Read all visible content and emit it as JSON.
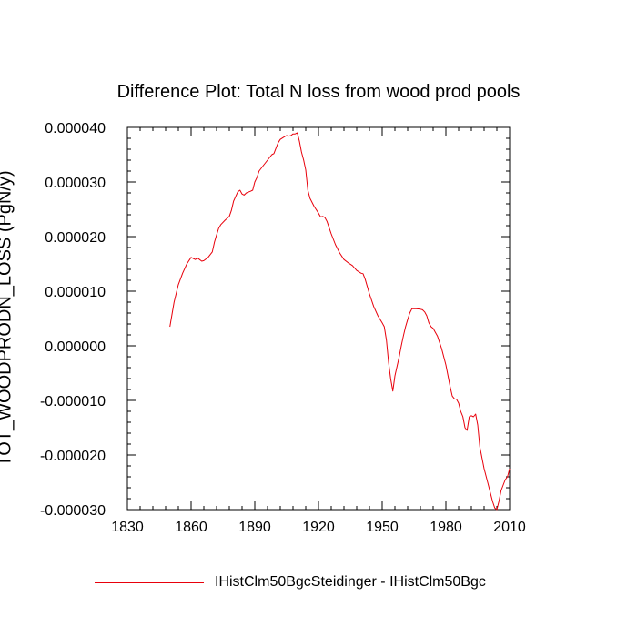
{
  "chart_data": {
    "type": "line",
    "title": "Difference Plot: Total N loss from wood prod pools",
    "xlabel": "",
    "ylabel": "TOT_WOODPRODN_LOSS  (PgN/y)",
    "xlim": [
      1830,
      2010
    ],
    "ylim": [
      -3e-05,
      4e-05
    ],
    "x_ticks": [
      "1830",
      "1860",
      "1890",
      "1920",
      "1950",
      "1980",
      "2010"
    ],
    "y_ticks": [
      "0.000040",
      "0.000030",
      "0.000020",
      "0.000010",
      "0.000000",
      "-0.000010",
      "-0.000020",
      "-0.000030"
    ],
    "grid": false,
    "legend_position": "bottom-left",
    "series_color": "#e8000b",
    "series": [
      {
        "name": "IHistClm50BgcSteidinger - IHistClm50Bgc",
        "x": [
          1850,
          1852,
          1854,
          1856,
          1858,
          1860,
          1861,
          1862,
          1863,
          1864,
          1865,
          1866,
          1868,
          1870,
          1871,
          1872,
          1873,
          1874,
          1876,
          1878,
          1879,
          1880,
          1882,
          1883,
          1884,
          1885,
          1886,
          1888,
          1889,
          1890,
          1891,
          1892,
          1894,
          1896,
          1898,
          1899,
          1900,
          1901,
          1902,
          1904,
          1905,
          1906,
          1907,
          1908,
          1909,
          1910,
          1911,
          1912,
          1913,
          1914,
          1915,
          1916,
          1918,
          1920,
          1921,
          1922,
          1923,
          1924,
          1926,
          1928,
          1930,
          1932,
          1934,
          1936,
          1938,
          1940,
          1941,
          1942,
          1944,
          1946,
          1948,
          1950,
          1951,
          1952,
          1953,
          1954,
          1955,
          1956,
          1958,
          1959,
          1960,
          1961,
          1962,
          1963,
          1964,
          1966,
          1968,
          1969,
          1970,
          1971,
          1972,
          1973,
          1974,
          1975,
          1976,
          1978,
          1980,
          1982,
          1983,
          1984,
          1985,
          1986,
          1987,
          1988,
          1989,
          1990,
          1991,
          1992,
          1993,
          1994,
          1995,
          1996,
          1998,
          2000,
          2001,
          2002,
          2003,
          2004,
          2005,
          2006,
          2007,
          2008,
          2009,
          2010
        ],
        "y": [
          3.5e-06,
          8e-06,
          1.12e-05,
          1.33e-05,
          1.5e-05,
          1.62e-05,
          1.6e-05,
          1.58e-05,
          1.61e-05,
          1.58e-05,
          1.55e-05,
          1.56e-05,
          1.62e-05,
          1.72e-05,
          1.9e-05,
          2.03e-05,
          2.15e-05,
          2.22e-05,
          2.3e-05,
          2.37e-05,
          2.48e-05,
          2.65e-05,
          2.82e-05,
          2.85e-05,
          2.78e-05,
          2.76e-05,
          2.8e-05,
          2.83e-05,
          2.85e-05,
          3e-05,
          3.08e-05,
          3.2e-05,
          3.3e-05,
          3.4e-05,
          3.5e-05,
          3.52e-05,
          3.62e-05,
          3.72e-05,
          3.78e-05,
          3.83e-05,
          3.85e-05,
          3.84e-05,
          3.85e-05,
          3.88e-05,
          3.88e-05,
          3.9e-05,
          3.75e-05,
          3.55e-05,
          3.4e-05,
          3.22e-05,
          2.85e-05,
          2.7e-05,
          2.55e-05,
          2.43e-05,
          2.36e-05,
          2.37e-05,
          2.35e-05,
          2.28e-05,
          2.05e-05,
          1.85e-05,
          1.7e-05,
          1.58e-05,
          1.52e-05,
          1.47e-05,
          1.38e-05,
          1.33e-05,
          1.32e-05,
          1.22e-05,
          9.5e-06,
          7.2e-06,
          5.5e-06,
          4.2e-06,
          3.5e-06,
          1e-06,
          -3e-06,
          -6e-06,
          -8.3e-06,
          -5.5e-06,
          -2e-06,
          0.0,
          1.8e-06,
          3.5e-06,
          4.8e-06,
          6e-06,
          6.8e-06,
          6.8e-06,
          6.7e-06,
          6.6e-06,
          6.2e-06,
          5.5e-06,
          4.2e-06,
          3.5e-06,
          3.2e-06,
          2.5e-06,
          1.8e-06,
          -5e-07,
          -3.5e-06,
          -7.5e-06,
          -9.2e-06,
          -9.7e-06,
          -9.8e-06,
          -1.05e-05,
          -1.2e-05,
          -1.3e-05,
          -1.5e-05,
          -1.55e-05,
          -1.3e-05,
          -1.28e-05,
          -1.3e-05,
          -1.25e-05,
          -1.45e-05,
          -1.85e-05,
          -2.25e-05,
          -2.55e-05,
          -2.7e-05,
          -2.85e-05,
          -2.97e-05,
          -3e-05,
          -2.85e-05,
          -2.65e-05,
          -2.55e-05,
          -2.45e-05,
          -2.4e-05,
          -2.25e-05
        ]
      }
    ]
  }
}
